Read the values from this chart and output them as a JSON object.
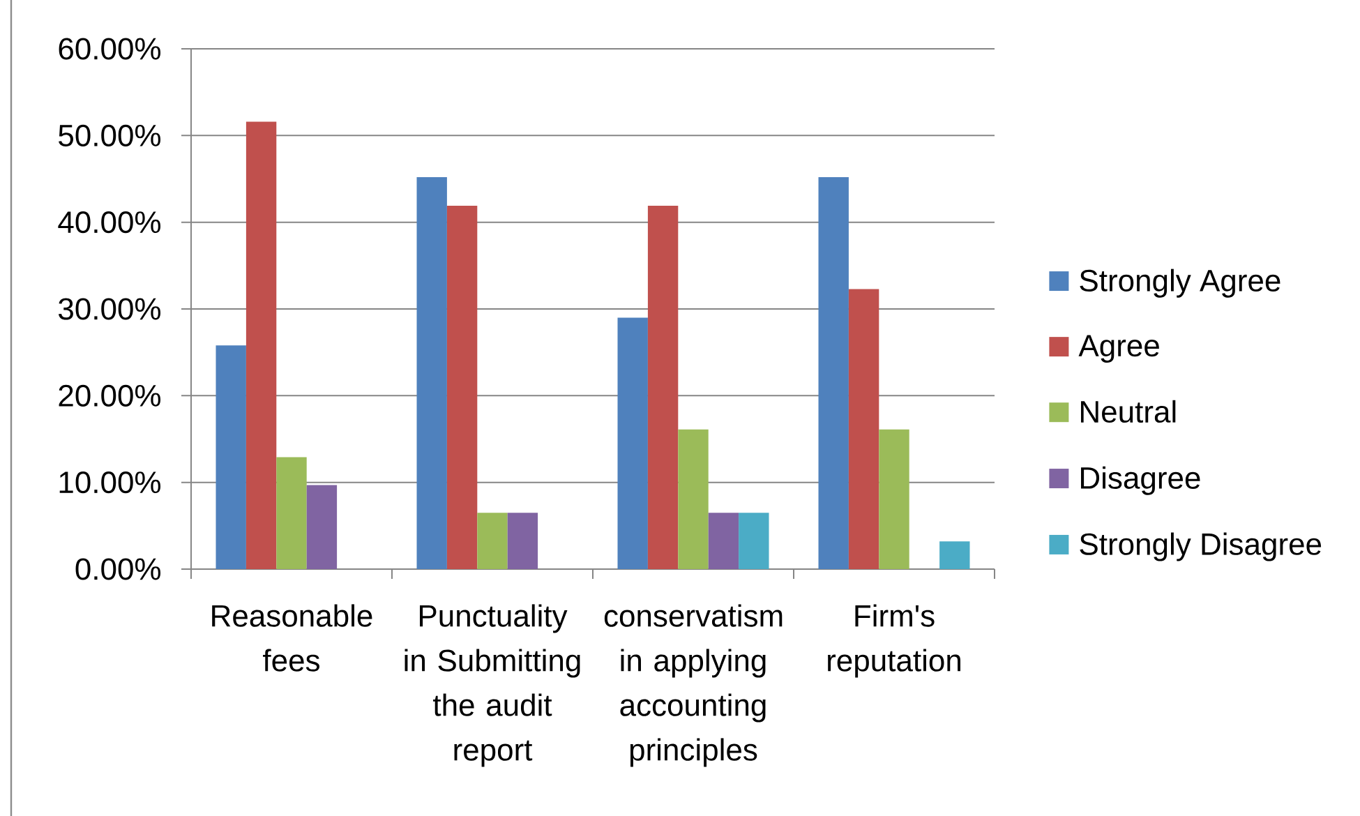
{
  "chart_data": {
    "type": "bar",
    "categories": [
      "Reasonable fees",
      "Punctuality in Submitting the audit report",
      "conservatism in applying accounting principles",
      "Firm's reputation"
    ],
    "series": [
      {
        "name": "Strongly Agree",
        "color": "#4f81bd",
        "values": [
          25.8,
          45.2,
          29.0,
          45.2
        ]
      },
      {
        "name": "Agree",
        "color": "#c0504d",
        "values": [
          51.6,
          41.9,
          41.9,
          32.3
        ]
      },
      {
        "name": "Neutral",
        "color": "#9bbb59",
        "values": [
          12.9,
          6.5,
          16.1,
          16.1
        ]
      },
      {
        "name": "Disagree",
        "color": "#8064a2",
        "values": [
          9.7,
          6.5,
          6.5,
          null
        ]
      },
      {
        "name": "Strongly Disagree",
        "color": "#4bacc6",
        "values": [
          null,
          null,
          6.5,
          3.2
        ]
      }
    ],
    "ylim": [
      0,
      60
    ],
    "yticks": [
      {
        "value": 0,
        "label": "0.00%"
      },
      {
        "value": 10,
        "label": "10.00%"
      },
      {
        "value": 20,
        "label": "20.00%"
      },
      {
        "value": 30,
        "label": "30.00%"
      },
      {
        "value": 40,
        "label": "40.00%"
      },
      {
        "value": 50,
        "label": "50.00%"
      },
      {
        "value": 60,
        "label": "60.00%"
      }
    ],
    "grid": "y",
    "legend": "right"
  }
}
